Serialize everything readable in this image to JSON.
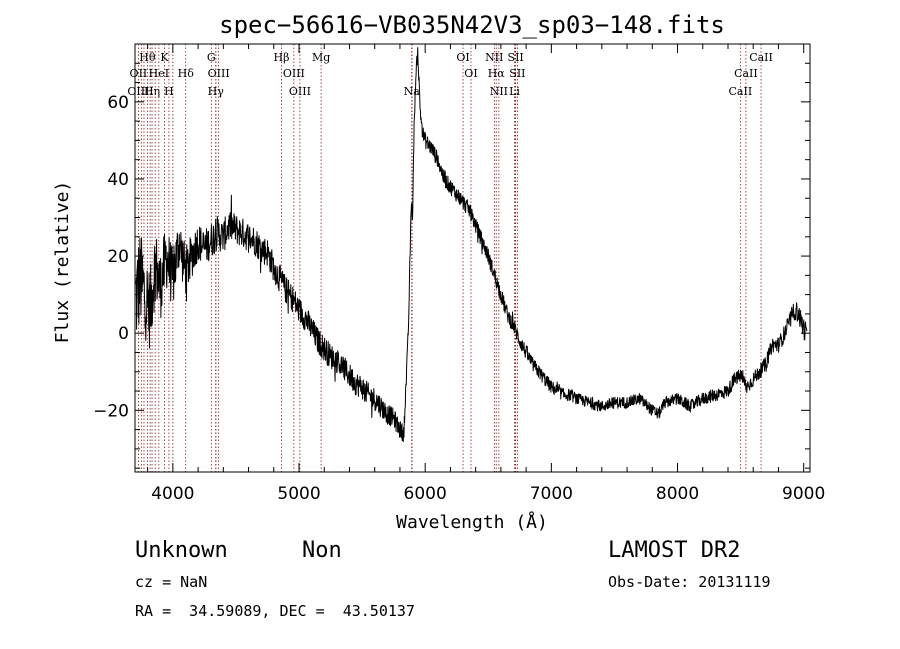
{
  "chart_data": {
    "type": "line",
    "title": "spec−56616−VB035N42V3_sp03−148.fits",
    "xlabel": "Wavelength (Å)",
    "ylabel": "Flux (relative)",
    "xlim": [
      3700,
      9050
    ],
    "ylim": [
      -36,
      75
    ],
    "xticks": [
      4000,
      5000,
      6000,
      7000,
      8000,
      9000
    ],
    "yticks": [
      -20,
      0,
      20,
      40,
      60
    ],
    "xtick_labels": [
      "4000",
      "5000",
      "6000",
      "7000",
      "8000",
      "9000"
    ],
    "ytick_labels": [
      "−20",
      "0",
      "20",
      "40",
      "60"
    ],
    "grid": false,
    "line_color": "#000000",
    "marker_color": "#8b1a1a",
    "spectrum": {
      "x": [
        3700,
        3740,
        3780,
        3820,
        3860,
        3900,
        3950,
        4000,
        4050,
        4100,
        4150,
        4200,
        4250,
        4300,
        4350,
        4400,
        4450,
        4500,
        4550,
        4600,
        4650,
        4700,
        4750,
        4800,
        4850,
        4900,
        4950,
        5000,
        5050,
        5100,
        5150,
        5200,
        5250,
        5300,
        5350,
        5400,
        5450,
        5500,
        5550,
        5600,
        5650,
        5700,
        5750,
        5800,
        5830,
        5860,
        5870,
        5880,
        5890,
        5900,
        5910,
        5920,
        5940,
        5960,
        5980,
        6000,
        6050,
        6100,
        6150,
        6200,
        6250,
        6300,
        6350,
        6400,
        6450,
        6500,
        6550,
        6600,
        6650,
        6700,
        6750,
        6800,
        6850,
        6900,
        6950,
        7000,
        7050,
        7100,
        7150,
        7200,
        7300,
        7400,
        7500,
        7600,
        7700,
        7800,
        7850,
        7900,
        8000,
        8100,
        8200,
        8300,
        8400,
        8450,
        8500,
        8550,
        8600,
        8650,
        8700,
        8750,
        8800,
        8850,
        8900,
        8930,
        8960,
        8990,
        9020
      ],
      "y": [
        8,
        14,
        10,
        6,
        18,
        12,
        20,
        14,
        24,
        16,
        20,
        24,
        22,
        24,
        26,
        25,
        28,
        27,
        26,
        25,
        24,
        22,
        21,
        17,
        14,
        11,
        9,
        6,
        4,
        1,
        -2,
        -4,
        -6,
        -7,
        -9,
        -11,
        -13,
        -14,
        -16,
        -17,
        -19,
        -21,
        -22,
        -25,
        -26,
        -5,
        5,
        20,
        34,
        30,
        50,
        62,
        74,
        58,
        52,
        50,
        48,
        45,
        40,
        38,
        36,
        34,
        32,
        28,
        24,
        20,
        15,
        10,
        5,
        2,
        -2,
        -5,
        -8,
        -10,
        -12,
        -14,
        -15,
        -16,
        -16,
        -17,
        -18,
        -19,
        -18,
        -18,
        -17,
        -20,
        -21,
        -18,
        -17,
        -19,
        -17,
        -16,
        -15,
        -12,
        -11,
        -14,
        -12,
        -10,
        -8,
        -3,
        -3,
        0,
        4,
        6,
        5,
        2,
        0
      ],
      "noise_amplitude": [
        [
          3700,
          14
        ],
        [
          3800,
          11
        ],
        [
          3900,
          9
        ],
        [
          4000,
          8
        ],
        [
          4200,
          5
        ],
        [
          4500,
          4
        ],
        [
          5000,
          3.5
        ],
        [
          5600,
          3
        ],
        [
          5900,
          2
        ],
        [
          6400,
          2
        ],
        [
          6700,
          2
        ],
        [
          7200,
          1.5
        ],
        [
          8000,
          1.5
        ],
        [
          8800,
          2
        ],
        [
          9050,
          3
        ]
      ]
    },
    "line_markers": [
      {
        "label": "Hθ",
        "wavelength": 3798,
        "row": 0
      },
      {
        "label": "OII",
        "wavelength": 3727,
        "row": 1
      },
      {
        "label": "OIII",
        "wavelength": 3727,
        "row": 2
      },
      {
        "label": "HeI",
        "wavelength": 3889,
        "row": 1
      },
      {
        "label": "Hη",
        "wavelength": 3835,
        "row": 2
      },
      {
        "label": "K",
        "wavelength": 3934,
        "row": 0
      },
      {
        "label": "H",
        "wavelength": 3969,
        "row": 2
      },
      {
        "label": "Hδ",
        "wavelength": 4102,
        "row": 1
      },
      {
        "label": "G",
        "wavelength": 4305,
        "row": 0
      },
      {
        "label": "OIII",
        "wavelength": 4363,
        "row": 1
      },
      {
        "label": "Hγ",
        "wavelength": 4340,
        "row": 2
      },
      {
        "label": "Hβ",
        "wavelength": 4861,
        "row": 0
      },
      {
        "label": "OIII",
        "wavelength": 4959,
        "row": 1
      },
      {
        "label": "OIII",
        "wavelength": 5007,
        "row": 2
      },
      {
        "label": "Mg",
        "wavelength": 5175,
        "row": 0
      },
      {
        "label": "Na",
        "wavelength": 5893,
        "row": 2
      },
      {
        "label": "OI",
        "wavelength": 6300,
        "row": 0
      },
      {
        "label": "OI",
        "wavelength": 6363,
        "row": 1
      },
      {
        "label": "NII",
        "wavelength": 6548,
        "row": 0
      },
      {
        "label": "Hα",
        "wavelength": 6563,
        "row": 1
      },
      {
        "label": "NII",
        "wavelength": 6584,
        "row": 2
      },
      {
        "label": "SII",
        "wavelength": 6717,
        "row": 0
      },
      {
        "label": "SII",
        "wavelength": 6731,
        "row": 1
      },
      {
        "label": "Li",
        "wavelength": 6708,
        "row": 2
      },
      {
        "label": "CaII",
        "wavelength": 8662,
        "row": 0
      },
      {
        "label": "CaII",
        "wavelength": 8542,
        "row": 1
      },
      {
        "label": "CaII",
        "wavelength": 8498,
        "row": 2
      }
    ],
    "extra_marker_lines": [
      3750,
      3771,
      3820,
      3860,
      4000,
      4341,
      5896,
      6716
    ]
  },
  "info": {
    "class": "Unknown",
    "subclass": "Non",
    "survey": "LAMOST DR2",
    "cz": "cz = NaN",
    "obs_date": "Obs-Date: 20131119",
    "coords": "RA =  34.59089, DEC =  43.50137"
  }
}
